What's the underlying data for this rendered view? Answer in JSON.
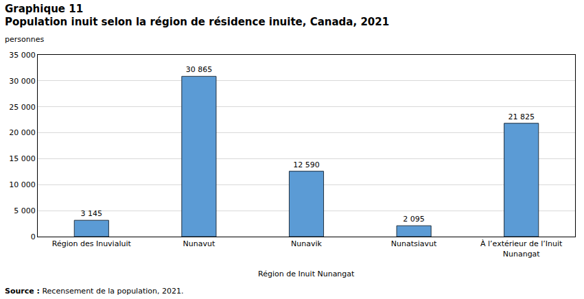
{
  "chart_data": {
    "type": "bar",
    "title": "Graphique 11",
    "subtitle": "Population inuit selon la région de résidence inuite, Canada, 2021",
    "y_label": "personnes",
    "x_label": "Région de Inuit Nunangat",
    "source": {
      "label": "Source :",
      "text": "Recensement de la population, 2021."
    },
    "categories": [
      "Région des Inuvialuit",
      "Nunavut",
      "Nunavik",
      "Nunatsiavut",
      "À l’extérieur de l’Inuit Nunangat"
    ],
    "values": [
      3145,
      30865,
      12590,
      2095,
      21825
    ],
    "value_labels": [
      "3 145",
      "30 865",
      "12 590",
      "2 095",
      "21 825"
    ],
    "data_labels": true,
    "color": "#5b9bd5",
    "ylim": [
      0,
      35000
    ],
    "yticks": [
      0,
      {
        "value": 5000,
        "label": "5 000"
      },
      {
        "value": 10000,
        "label": "10 000"
      },
      {
        "value": 15000,
        "label": "15 000"
      },
      {
        "value": 20000,
        "label": "20 000"
      },
      {
        "value": 25000,
        "label": "25 000"
      },
      {
        "value": 30000,
        "label": "30 000"
      },
      {
        "value": 35000,
        "label": "35 000"
      }
    ],
    "grid": true
  }
}
